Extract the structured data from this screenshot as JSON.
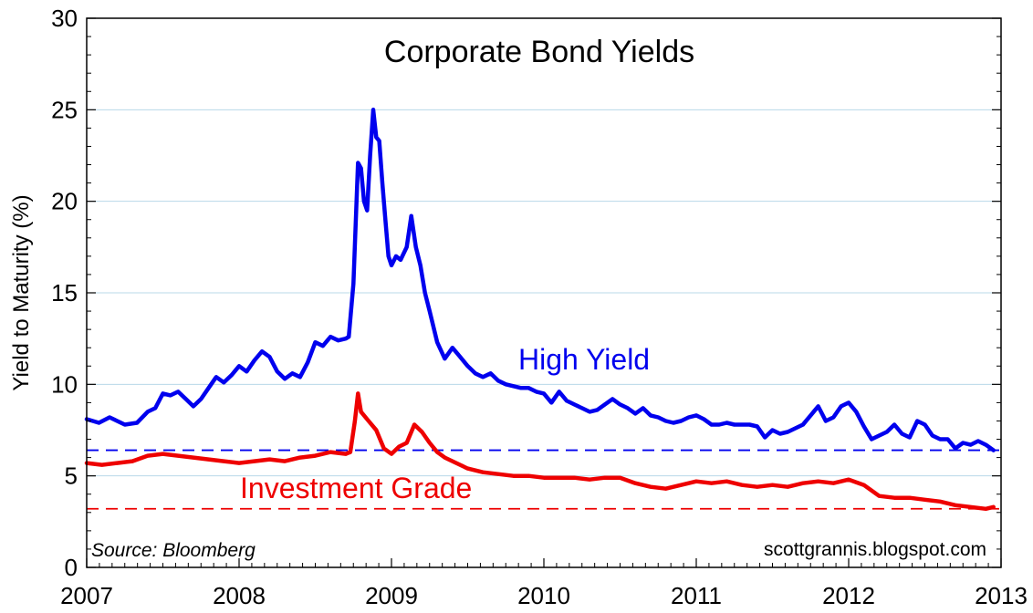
{
  "chart_data": {
    "type": "line",
    "title": "Corporate Bond Yields",
    "ylabel": "Yield to Maturity (%)",
    "xlabel": "",
    "xlim": [
      2007,
      2013
    ],
    "ylim": [
      0,
      30
    ],
    "x_ticks": [
      "2007",
      "2008",
      "2009",
      "2010",
      "2011",
      "2012",
      "2013"
    ],
    "y_ticks": [
      "0",
      "5",
      "10",
      "15",
      "20",
      "25",
      "30"
    ],
    "grid": "horizontal",
    "source_note": "Source: Bloomberg",
    "credit": "scottgrannis.blogspot.com",
    "series": [
      {
        "name": "High Yield",
        "color": "#0000ee",
        "reference_line": 6.4,
        "x": [
          2007.0,
          2007.08,
          2007.15,
          2007.2,
          2007.25,
          2007.33,
          2007.4,
          2007.45,
          2007.5,
          2007.55,
          2007.6,
          2007.65,
          2007.7,
          2007.75,
          2007.8,
          2007.85,
          2007.9,
          2007.95,
          2008.0,
          2008.05,
          2008.1,
          2008.15,
          2008.2,
          2008.25,
          2008.3,
          2008.35,
          2008.4,
          2008.45,
          2008.5,
          2008.55,
          2008.6,
          2008.65,
          2008.7,
          2008.72,
          2008.75,
          2008.78,
          2008.8,
          2008.82,
          2008.84,
          2008.86,
          2008.88,
          2008.9,
          2008.92,
          2008.94,
          2008.96,
          2008.98,
          2009.0,
          2009.03,
          2009.06,
          2009.1,
          2009.13,
          2009.16,
          2009.19,
          2009.22,
          2009.25,
          2009.3,
          2009.35,
          2009.4,
          2009.45,
          2009.5,
          2009.55,
          2009.6,
          2009.65,
          2009.7,
          2009.75,
          2009.8,
          2009.85,
          2009.9,
          2009.95,
          2010.0,
          2010.05,
          2010.1,
          2010.15,
          2010.2,
          2010.25,
          2010.3,
          2010.35,
          2010.4,
          2010.45,
          2010.5,
          2010.55,
          2010.6,
          2010.65,
          2010.7,
          2010.75,
          2010.8,
          2010.85,
          2010.9,
          2010.95,
          2011.0,
          2011.05,
          2011.1,
          2011.15,
          2011.2,
          2011.25,
          2011.3,
          2011.35,
          2011.4,
          2011.45,
          2011.5,
          2011.55,
          2011.6,
          2011.65,
          2011.7,
          2011.75,
          2011.8,
          2011.85,
          2011.9,
          2011.95,
          2012.0,
          2012.05,
          2012.1,
          2012.15,
          2012.2,
          2012.25,
          2012.3,
          2012.35,
          2012.4,
          2012.45,
          2012.5,
          2012.55,
          2012.6,
          2012.65,
          2012.7,
          2012.75,
          2012.8,
          2012.85,
          2012.9,
          2012.95
        ],
        "y": [
          8.1,
          7.9,
          8.2,
          8.0,
          7.8,
          7.9,
          8.5,
          8.7,
          9.5,
          9.4,
          9.6,
          9.2,
          8.8,
          9.2,
          9.8,
          10.4,
          10.1,
          10.5,
          11.0,
          10.7,
          11.3,
          11.8,
          11.5,
          10.7,
          10.3,
          10.6,
          10.4,
          11.2,
          12.3,
          12.1,
          12.6,
          12.4,
          12.5,
          12.6,
          15.5,
          22.1,
          21.8,
          20.0,
          19.5,
          22.5,
          25.0,
          23.5,
          23.3,
          21.0,
          19.0,
          17.0,
          16.5,
          17.0,
          16.8,
          17.5,
          19.2,
          17.5,
          16.5,
          15.0,
          14.0,
          12.3,
          11.4,
          12.0,
          11.5,
          11.0,
          10.6,
          10.4,
          10.6,
          10.2,
          10.0,
          9.9,
          9.8,
          9.8,
          9.6,
          9.5,
          9.0,
          9.6,
          9.1,
          8.9,
          8.7,
          8.5,
          8.6,
          8.9,
          9.2,
          8.9,
          8.7,
          8.4,
          8.7,
          8.3,
          8.2,
          8.0,
          7.9,
          8.0,
          8.2,
          8.3,
          8.1,
          7.8,
          7.8,
          7.9,
          7.8,
          7.8,
          7.8,
          7.7,
          7.1,
          7.5,
          7.3,
          7.4,
          7.6,
          7.8,
          8.3,
          8.8,
          8.0,
          8.2,
          8.8,
          9.0,
          8.5,
          7.7,
          7.0,
          7.2,
          7.4,
          7.8,
          7.3,
          7.1,
          8.0,
          7.8,
          7.2,
          7.0,
          7.0,
          6.5,
          6.8,
          6.7,
          6.9,
          6.7,
          6.4
        ]
      },
      {
        "name": "Investment Grade",
        "color": "#ee0000",
        "reference_line": 3.2,
        "x": [
          2007.0,
          2007.1,
          2007.2,
          2007.3,
          2007.4,
          2007.5,
          2007.6,
          2007.7,
          2007.8,
          2007.9,
          2008.0,
          2008.1,
          2008.2,
          2008.3,
          2008.4,
          2008.5,
          2008.6,
          2008.7,
          2008.73,
          2008.76,
          2008.78,
          2008.8,
          2008.85,
          2008.9,
          2008.95,
          2009.0,
          2009.05,
          2009.1,
          2009.15,
          2009.2,
          2009.25,
          2009.3,
          2009.35,
          2009.4,
          2009.5,
          2009.6,
          2009.7,
          2009.8,
          2009.9,
          2010.0,
          2010.1,
          2010.2,
          2010.3,
          2010.4,
          2010.5,
          2010.6,
          2010.7,
          2010.8,
          2010.9,
          2011.0,
          2011.1,
          2011.2,
          2011.3,
          2011.4,
          2011.5,
          2011.6,
          2011.7,
          2011.8,
          2011.9,
          2012.0,
          2012.1,
          2012.2,
          2012.3,
          2012.4,
          2012.5,
          2012.6,
          2012.7,
          2012.8,
          2012.9,
          2012.95
        ],
        "y": [
          5.7,
          5.6,
          5.7,
          5.8,
          6.1,
          6.2,
          6.1,
          6.0,
          5.9,
          5.8,
          5.7,
          5.8,
          5.9,
          5.8,
          6.0,
          6.1,
          6.3,
          6.2,
          6.3,
          8.0,
          9.5,
          8.5,
          8.0,
          7.5,
          6.5,
          6.2,
          6.6,
          6.8,
          7.8,
          7.4,
          6.8,
          6.3,
          6.0,
          5.8,
          5.4,
          5.2,
          5.1,
          5.0,
          5.0,
          4.9,
          4.9,
          4.9,
          4.8,
          4.9,
          4.9,
          4.6,
          4.4,
          4.3,
          4.5,
          4.7,
          4.6,
          4.7,
          4.5,
          4.4,
          4.5,
          4.4,
          4.6,
          4.7,
          4.6,
          4.8,
          4.5,
          3.9,
          3.8,
          3.8,
          3.7,
          3.6,
          3.4,
          3.3,
          3.2,
          3.3
        ]
      }
    ]
  }
}
